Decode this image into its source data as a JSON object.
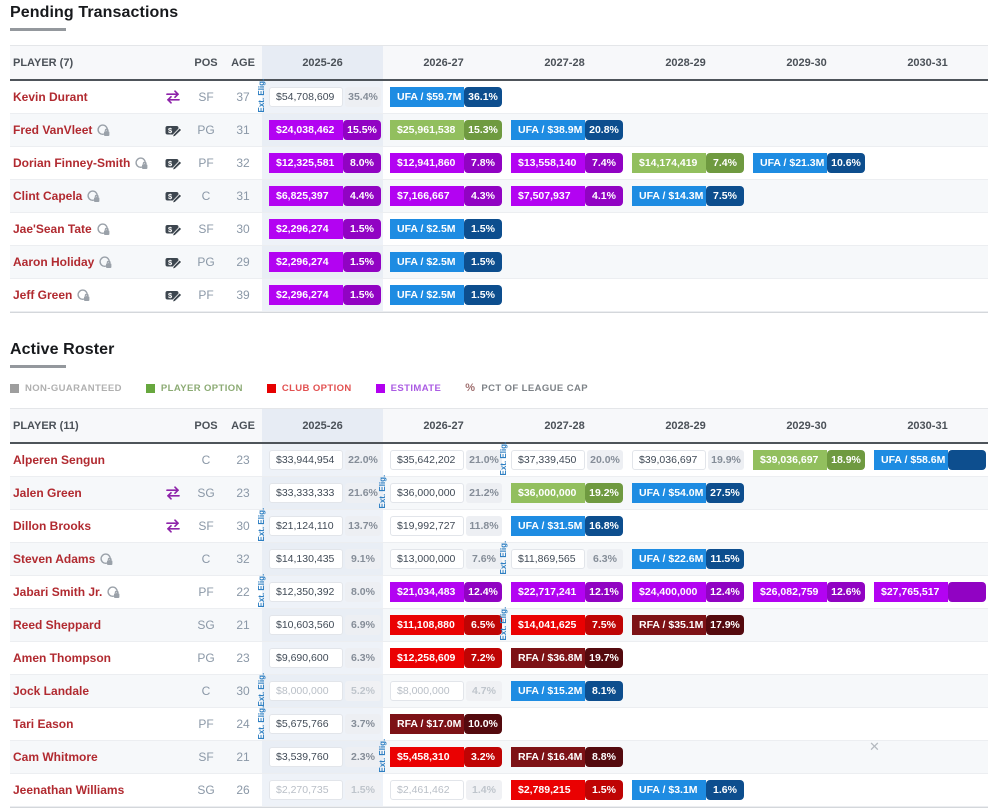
{
  "colors": {
    "estimate": "#b303f2",
    "estimate_dark": "#9103c3",
    "ufa": "#1e8ce2",
    "ufa_dark": "#0d4e8e",
    "player_option": "#92bf5e",
    "player_option_dark": "#6f9a40",
    "club_option": "#ea0102",
    "club_option_dark": "#bf0404",
    "rfa": "#7d1216",
    "rfa_dark": "#540a0e",
    "player_name": "#b12a30",
    "ext_elig": "#2e7fc2"
  },
  "labels": {
    "ext_eligible": "Ext. Elig.",
    "close": "✕"
  },
  "sections": [
    {
      "title": "Pending Transactions",
      "player_header": "PLAYER (7)",
      "pos_header": "POS",
      "age_header": "AGE",
      "years": [
        "2025-26",
        "2026-27",
        "2027-28",
        "2028-29",
        "2029-30",
        "2030-31"
      ],
      "rows": [
        {
          "name": "Kevin Durant",
          "badge_icon": "swap",
          "lock": false,
          "pos": "SF",
          "age": "37",
          "cells": [
            {
              "type": "plain",
              "value": "$54,708,609",
              "pct": "35.4%",
              "ext": true
            },
            {
              "type": "ufa",
              "value": "UFA / $59.7M",
              "pct": "36.1%"
            },
            null,
            null,
            null,
            null
          ]
        },
        {
          "name": "Fred VanVleet",
          "badge_icon": "cash",
          "lock": true,
          "pos": "PG",
          "age": "31",
          "cells": [
            {
              "type": "estimate",
              "value": "$24,038,462",
              "pct": "15.5%"
            },
            {
              "type": "player_option",
              "value": "$25,961,538",
              "pct": "15.3%"
            },
            {
              "type": "ufa",
              "value": "UFA / $38.9M",
              "pct": "20.8%"
            },
            null,
            null,
            null
          ]
        },
        {
          "name": "Dorian Finney-Smith",
          "badge_icon": "cash",
          "lock": true,
          "pos": "PF",
          "age": "32",
          "cells": [
            {
              "type": "estimate",
              "value": "$12,325,581",
              "pct": "8.0%"
            },
            {
              "type": "estimate",
              "value": "$12,941,860",
              "pct": "7.8%"
            },
            {
              "type": "estimate",
              "value": "$13,558,140",
              "pct": "7.4%"
            },
            {
              "type": "player_option",
              "value": "$14,174,419",
              "pct": "7.4%"
            },
            {
              "type": "ufa",
              "value": "UFA / $21.3M",
              "pct": "10.6%"
            },
            null
          ]
        },
        {
          "name": "Clint Capela",
          "badge_icon": "cash",
          "lock": true,
          "pos": "C",
          "age": "31",
          "cells": [
            {
              "type": "estimate",
              "value": "$6,825,397",
              "pct": "4.4%"
            },
            {
              "type": "estimate",
              "value": "$7,166,667",
              "pct": "4.3%"
            },
            {
              "type": "estimate",
              "value": "$7,507,937",
              "pct": "4.1%"
            },
            {
              "type": "ufa",
              "value": "UFA / $14.3M",
              "pct": "7.5%"
            },
            null,
            null
          ]
        },
        {
          "name": "Jae'Sean Tate",
          "badge_icon": "cash",
          "lock": true,
          "pos": "SF",
          "age": "30",
          "cells": [
            {
              "type": "estimate",
              "value": "$2,296,274",
              "pct": "1.5%"
            },
            {
              "type": "ufa",
              "value": "UFA / $2.5M",
              "pct": "1.5%"
            },
            null,
            null,
            null,
            null
          ]
        },
        {
          "name": "Aaron Holiday",
          "badge_icon": "cash",
          "lock": true,
          "pos": "PG",
          "age": "29",
          "cells": [
            {
              "type": "estimate",
              "value": "$2,296,274",
              "pct": "1.5%"
            },
            {
              "type": "ufa",
              "value": "UFA / $2.5M",
              "pct": "1.5%"
            },
            null,
            null,
            null,
            null
          ]
        },
        {
          "name": "Jeff Green",
          "badge_icon": "cash",
          "lock": true,
          "pos": "PF",
          "age": "39",
          "cells": [
            {
              "type": "estimate",
              "value": "$2,296,274",
              "pct": "1.5%"
            },
            {
              "type": "ufa",
              "value": "UFA / $2.5M",
              "pct": "1.5%"
            },
            null,
            null,
            null,
            null
          ]
        }
      ]
    },
    {
      "title": "Active Roster",
      "player_header": "PLAYER (11)",
      "pos_header": "POS",
      "age_header": "AGE",
      "years": [
        "2025-26",
        "2026-27",
        "2027-28",
        "2028-29",
        "2029-30",
        "2030-31"
      ],
      "legend": [
        {
          "label": "NON-GUARANTEED",
          "square": "#9e9e9e",
          "text": "#b0b0b0"
        },
        {
          "label": "PLAYER OPTION",
          "square": "#67a73e",
          "text": "#8cab74"
        },
        {
          "label": "CLUB OPTION",
          "square": "#e60000",
          "text": "#e25151"
        },
        {
          "label": "ESTIMATE",
          "square": "#b200f0",
          "text": "#ab5ce3"
        },
        {
          "label": "PCT OF LEAGUE CAP",
          "percent_icon": "%",
          "text": "#7d8287"
        }
      ],
      "rows": [
        {
          "name": "Alperen Sengun",
          "badge_icon": null,
          "lock": false,
          "pos": "C",
          "age": "23",
          "cells": [
            {
              "type": "plain",
              "value": "$33,944,954",
              "pct": "22.0%"
            },
            {
              "type": "plain",
              "value": "$35,642,202",
              "pct": "21.0%"
            },
            {
              "type": "plain",
              "value": "$37,339,450",
              "pct": "20.0%",
              "ext": true
            },
            {
              "type": "plain",
              "value": "$39,036,697",
              "pct": "19.9%"
            },
            {
              "type": "player_option",
              "value": "$39,036,697",
              "pct": "18.9%"
            },
            {
              "type": "ufa",
              "value": "UFA / $58.6M",
              "pct": ""
            }
          ]
        },
        {
          "name": "Jalen Green",
          "badge_icon": "swap",
          "lock": false,
          "pos": "SG",
          "age": "23",
          "cells": [
            {
              "type": "plain",
              "value": "$33,333,333",
              "pct": "21.6%"
            },
            {
              "type": "plain",
              "value": "$36,000,000",
              "pct": "21.2%",
              "ext": true
            },
            {
              "type": "player_option",
              "value": "$36,000,000",
              "pct": "19.2%"
            },
            {
              "type": "ufa",
              "value": "UFA / $54.0M",
              "pct": "27.5%"
            },
            null,
            null
          ]
        },
        {
          "name": "Dillon Brooks",
          "badge_icon": "swap",
          "lock": false,
          "pos": "SF",
          "age": "30",
          "cells": [
            {
              "type": "plain",
              "value": "$21,124,110",
              "pct": "13.7%",
              "ext": true
            },
            {
              "type": "plain",
              "value": "$19,992,727",
              "pct": "11.8%"
            },
            {
              "type": "ufa",
              "value": "UFA / $31.5M",
              "pct": "16.8%"
            },
            null,
            null,
            null
          ]
        },
        {
          "name": "Steven Adams",
          "badge_icon": null,
          "lock": true,
          "pos": "C",
          "age": "32",
          "cells": [
            {
              "type": "plain",
              "value": "$14,130,435",
              "pct": "9.1%"
            },
            {
              "type": "plain",
              "value": "$13,000,000",
              "pct": "7.6%"
            },
            {
              "type": "plain",
              "value": "$11,869,565",
              "pct": "6.3%",
              "ext": true
            },
            {
              "type": "ufa",
              "value": "UFA / $22.6M",
              "pct": "11.5%"
            },
            null,
            null
          ]
        },
        {
          "name": "Jabari Smith Jr.",
          "badge_icon": null,
          "lock": true,
          "pos": "PF",
          "age": "22",
          "cells": [
            {
              "type": "plain",
              "value": "$12,350,392",
              "pct": "8.0%",
              "ext": true
            },
            {
              "type": "estimate",
              "value": "$21,034,483",
              "pct": "12.4%"
            },
            {
              "type": "estimate",
              "value": "$22,717,241",
              "pct": "12.1%"
            },
            {
              "type": "estimate",
              "value": "$24,400,000",
              "pct": "12.4%"
            },
            {
              "type": "estimate",
              "value": "$26,082,759",
              "pct": "12.6%"
            },
            {
              "type": "estimate",
              "value": "$27,765,517",
              "pct": ""
            }
          ]
        },
        {
          "name": "Reed Sheppard",
          "badge_icon": null,
          "lock": false,
          "pos": "SG",
          "age": "21",
          "cells": [
            {
              "type": "plain",
              "value": "$10,603,560",
              "pct": "6.9%"
            },
            {
              "type": "club_option",
              "value": "$11,108,880",
              "pct": "6.5%"
            },
            {
              "type": "club_option",
              "value": "$14,041,625",
              "pct": "7.5%",
              "ext": true
            },
            {
              "type": "rfa",
              "value": "RFA / $35.1M",
              "pct": "17.9%"
            },
            null,
            null
          ]
        },
        {
          "name": "Amen Thompson",
          "badge_icon": null,
          "lock": false,
          "pos": "PG",
          "age": "23",
          "cells": [
            {
              "type": "plain",
              "value": "$9,690,600",
              "pct": "6.3%"
            },
            {
              "type": "club_option",
              "value": "$12,258,609",
              "pct": "7.2%"
            },
            {
              "type": "rfa",
              "value": "RFA / $36.8M",
              "pct": "19.7%"
            },
            null,
            null,
            null
          ]
        },
        {
          "name": "Jock Landale",
          "badge_icon": null,
          "lock": false,
          "pos": "C",
          "age": "30",
          "cells": [
            {
              "type": "muted",
              "value": "$8,000,000",
              "pct": "5.2%",
              "ext": true
            },
            {
              "type": "muted",
              "value": "$8,000,000",
              "pct": "4.7%"
            },
            {
              "type": "ufa",
              "value": "UFA / $15.2M",
              "pct": "8.1%"
            },
            null,
            null,
            null
          ]
        },
        {
          "name": "Tari Eason",
          "badge_icon": null,
          "lock": false,
          "pos": "PF",
          "age": "24",
          "cells": [
            {
              "type": "plain",
              "value": "$5,675,766",
              "pct": "3.7%",
              "ext": true
            },
            {
              "type": "rfa",
              "value": "RFA / $17.0M",
              "pct": "10.0%"
            },
            null,
            null,
            null,
            null
          ]
        },
        {
          "name": "Cam Whitmore",
          "badge_icon": null,
          "lock": false,
          "pos": "SF",
          "age": "21",
          "cells": [
            {
              "type": "plain",
              "value": "$3,539,760",
              "pct": "2.3%"
            },
            {
              "type": "club_option",
              "value": "$5,458,310",
              "pct": "3.2%",
              "ext": true
            },
            {
              "type": "rfa",
              "value": "RFA / $16.4M",
              "pct": "8.8%"
            },
            null,
            null,
            null
          ]
        },
        {
          "name": "Jeenathan Williams",
          "badge_icon": null,
          "lock": false,
          "pos": "SG",
          "age": "26",
          "cells": [
            {
              "type": "muted",
              "value": "$2,270,735",
              "pct": "1.5%"
            },
            {
              "type": "muted",
              "value": "$2,461,462",
              "pct": "1.4%"
            },
            {
              "type": "club_option",
              "value": "$2,789,215",
              "pct": "1.5%"
            },
            {
              "type": "ufa",
              "value": "UFA / $3.1M",
              "pct": "1.6%"
            },
            null,
            null
          ]
        }
      ]
    }
  ]
}
